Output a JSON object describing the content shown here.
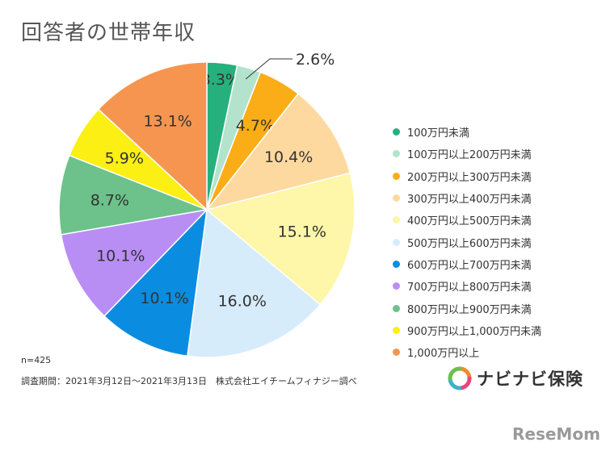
{
  "chart_data": {
    "type": "pie",
    "title": "回答者の世帯年収",
    "slices": [
      {
        "label": "100万円未満",
        "value": 3.3,
        "display": "3.3%",
        "color": "#26b07d"
      },
      {
        "label": "100万円以上200万円未満",
        "value": 2.6,
        "display": "2.6%",
        "color": "#b3e3cc"
      },
      {
        "label": "200万円以上300万円未満",
        "value": 4.7,
        "display": "4.7%",
        "color": "#fbad17"
      },
      {
        "label": "300万円以上400万円未満",
        "value": 10.4,
        "display": "10.4%",
        "color": "#fdd9a0"
      },
      {
        "label": "400万円以上500万円未満",
        "value": 15.1,
        "display": "15.1%",
        "color": "#fef6a8"
      },
      {
        "label": "500万円以上600万円未満",
        "value": 16.0,
        "display": "16.0%",
        "color": "#d6ecfb"
      },
      {
        "label": "600万円以上700万円未満",
        "value": 10.1,
        "display": "10.1%",
        "color": "#0a8de0"
      },
      {
        "label": "700万円以上800万円未満",
        "value": 10.1,
        "display": "10.1%",
        "color": "#b88ef5"
      },
      {
        "label": "800万円以上900万円未満",
        "value": 8.7,
        "display": "8.7%",
        "color": "#6cc28a"
      },
      {
        "label": "900万円以上1,000万円未満",
        "value": 5.9,
        "display": "5.9%",
        "color": "#fbef14"
      },
      {
        "label": "1,000万円以上",
        "value": 13.1,
        "display": "13.1%",
        "color": "#f5954f"
      }
    ],
    "legend_position": "right"
  },
  "notes": {
    "n": "n=425",
    "period": "調査期間：2021年3月12日～2021年3月13日　株式会社エイチームフィナジー調べ"
  },
  "brand": {
    "name": "ナビナビ保険",
    "logo_colors": [
      "#f08a2c",
      "#e8457c",
      "#3bb3c9",
      "#6cc04a"
    ]
  },
  "watermark": "ReseMom"
}
